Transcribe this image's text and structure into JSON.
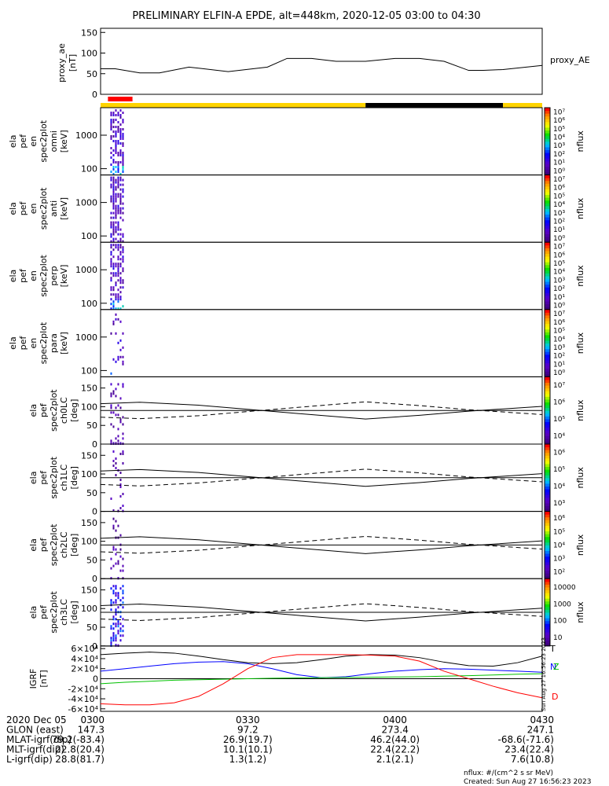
{
  "header": {
    "title": "PRELIMINARY ELFIN-A EPDE, alt=448km, 2020-12-05 03:00 to 04:30"
  },
  "colors": {
    "orbit_light": "#ffd400",
    "orbit_dark": "#000000",
    "science_zone": "#ff0000",
    "igrf_t": "#000000",
    "igrf_n": "#0000ff",
    "igrf_z": "#00c000",
    "igrf_d": "#ff0000"
  },
  "chart_data": [
    {
      "type": "line",
      "panel": "proxy_ae",
      "ylabel": [
        "proxy_ae",
        "[nT]"
      ],
      "yticks": [
        "0",
        "50",
        "100",
        "150"
      ],
      "ylim": [
        0,
        160
      ],
      "legend": "proxy_AE",
      "x_minutes": [
        0,
        3,
        8,
        12,
        18,
        26,
        34,
        38,
        43,
        48,
        54,
        60,
        65,
        70,
        75,
        78,
        82,
        90
      ],
      "values": [
        62,
        62,
        52,
        52,
        66,
        55,
        66,
        87,
        87,
        80,
        80,
        87,
        87,
        80,
        58,
        58,
        60,
        70
      ]
    },
    {
      "type": "heatmap",
      "panel": "spectrogram-omni",
      "ylabel": [
        "ela",
        "pef",
        "en",
        "spec2plot",
        "omni",
        "[keV]"
      ],
      "yticks": [
        "100",
        "1000"
      ],
      "zticks": [
        "10⁰",
        "10¹",
        "10²",
        "10³",
        "10⁴",
        "10⁵",
        "10⁶",
        "10⁷"
      ],
      "zlabel": "nflux",
      "active_interval_minutes": [
        2,
        4.5
      ]
    },
    {
      "type": "heatmap",
      "panel": "spectrogram-anti",
      "ylabel": [
        "ela",
        "pef",
        "en",
        "spec2plot",
        "anti",
        "[keV]"
      ],
      "yticks": [
        "100",
        "1000"
      ],
      "zticks": [
        "10⁰",
        "10¹",
        "10²",
        "10³",
        "10⁴",
        "10⁵",
        "10⁶",
        "10⁷"
      ],
      "zlabel": "nflux",
      "active_interval_minutes": [
        2,
        4.5
      ]
    },
    {
      "type": "heatmap",
      "panel": "spectrogram-perp",
      "ylabel": [
        "ela",
        "pef",
        "en",
        "spec2plot",
        "perp",
        "[keV]"
      ],
      "yticks": [
        "100",
        "1000"
      ],
      "zticks": [
        "10⁰",
        "10¹",
        "10²",
        "10³",
        "10⁴",
        "10⁵",
        "10⁶",
        "10⁷"
      ],
      "zlabel": "nflux",
      "active_interval_minutes": [
        2,
        4.5
      ]
    },
    {
      "type": "heatmap",
      "panel": "spectrogram-para",
      "ylabel": [
        "ela",
        "pef",
        "en",
        "spec2plot",
        "para",
        "[keV]"
      ],
      "yticks": [
        "100",
        "1000"
      ],
      "zticks": [
        "10⁰",
        "10¹",
        "10²",
        "10³",
        "10⁴",
        "10⁵",
        "10⁶",
        "10⁷"
      ],
      "zlabel": "nflux",
      "active_interval_minutes": [
        2,
        4.5
      ]
    },
    {
      "type": "heatmap",
      "panel": "pitch-angle-ch0",
      "ylabel": [
        "ela",
        "pef",
        "spec2plot",
        "ch0LC",
        "[deg]"
      ],
      "yticks": [
        "0",
        "50",
        "100",
        "150"
      ],
      "ylim": [
        0,
        180
      ],
      "zticks": [
        "10⁴",
        "10⁵",
        "10⁶",
        "10⁷"
      ],
      "zlabel": "nflux",
      "active_interval_minutes": [
        2,
        4.5
      ]
    },
    {
      "type": "heatmap",
      "panel": "pitch-angle-ch1",
      "ylabel": [
        "ela",
        "pef",
        "spec2plot",
        "ch1LC",
        "[deg]"
      ],
      "yticks": [
        "0",
        "50",
        "100",
        "150"
      ],
      "ylim": [
        0,
        180
      ],
      "zticks": [
        "10³",
        "10⁴",
        "10⁵",
        "10⁶"
      ],
      "zlabel": "nflux",
      "active_interval_minutes": [
        2,
        4.5
      ]
    },
    {
      "type": "heatmap",
      "panel": "pitch-angle-ch2",
      "ylabel": [
        "ela",
        "pef",
        "spec2plot",
        "ch2LC",
        "[deg]"
      ],
      "yticks": [
        "0",
        "50",
        "100",
        "150"
      ],
      "ylim": [
        0,
        180
      ],
      "zticks": [
        "10²",
        "10³",
        "10⁴",
        "10⁵",
        "10⁶"
      ],
      "zlabel": "nflux",
      "active_interval_minutes": [
        2,
        4.5
      ]
    },
    {
      "type": "heatmap",
      "panel": "pitch-angle-ch3",
      "ylabel": [
        "ela",
        "pef",
        "spec2plot",
        "ch3LC",
        "[deg]"
      ],
      "yticks": [
        "0",
        "50",
        "100",
        "150"
      ],
      "ylim": [
        0,
        180
      ],
      "zticks": [
        "10",
        "100",
        "1000",
        "10000"
      ],
      "zlabel": "nflux",
      "active_interval_minutes": [
        2,
        4.5
      ]
    },
    {
      "type": "line",
      "panel": "igrf",
      "ylabel": [
        "IGRF",
        "[nT]"
      ],
      "yticks": [
        "-6×10⁴",
        "-4×10⁴",
        "-2×10⁴",
        "0",
        "2×10⁴",
        "4×10⁴",
        "6×10⁴"
      ],
      "ylim": [
        -65000,
        65000
      ],
      "x_minutes": [
        0,
        5,
        10,
        15,
        20,
        25,
        30,
        35,
        40,
        45,
        50,
        55,
        60,
        65,
        70,
        75,
        80,
        85,
        90
      ],
      "series": [
        {
          "name": "T",
          "values": [
            48000,
            51000,
            53000,
            51000,
            45000,
            38000,
            32000,
            30000,
            32000,
            38000,
            45000,
            48000,
            47000,
            42000,
            33000,
            26000,
            25000,
            32000,
            45000
          ]
        },
        {
          "name": "N",
          "values": [
            15000,
            20000,
            25000,
            30000,
            33000,
            34000,
            30000,
            20000,
            8000,
            2000,
            4000,
            10000,
            15000,
            18000,
            20000,
            19000,
            17000,
            15000,
            13000
          ]
        },
        {
          "name": "Z",
          "values": [
            -10000,
            -7000,
            -5000,
            -3000,
            -2000,
            -1000,
            0,
            1000,
            1500,
            2000,
            2500,
            3000,
            3500,
            4000,
            5000,
            6000,
            7500,
            9000,
            10000
          ]
        },
        {
          "name": "D",
          "values": [
            -50000,
            -52000,
            -52000,
            -48000,
            -35000,
            -10000,
            20000,
            42000,
            48000,
            48000,
            48000,
            47000,
            45000,
            35000,
            15000,
            0,
            -15000,
            -28000,
            -38000
          ]
        }
      ]
    }
  ],
  "orbit_bar": {
    "segments_minutes": [
      {
        "from": 0,
        "to": 54,
        "state": "light"
      },
      {
        "from": 54,
        "to": 82,
        "state": "dark"
      },
      {
        "from": 82,
        "to": 90,
        "state": "light"
      }
    ],
    "science_zone_minutes": [
      1.5,
      6.5
    ]
  },
  "mlat_trace": {
    "x_minutes": [
      0,
      8,
      20,
      30,
      40,
      54,
      65,
      75,
      90
    ],
    "pitch_deg": [
      108,
      112,
      104,
      93,
      82,
      67,
      77,
      88,
      101
    ]
  },
  "footer": {
    "rows": [
      [
        "2020 Dec 05",
        "0300",
        "0330",
        "0400",
        "0430"
      ],
      [
        "GLON (east)",
        "147.3",
        "97.2",
        "273.4",
        "247.1"
      ],
      [
        "MLAT-igrf(dip)",
        "79.2(-83.4)",
        "26.9(19.7)",
        "46.2(44.0)",
        "-68.6(-71.6)"
      ],
      [
        "MLT-igrf(dip)",
        "22.8(20.4)",
        "10.1(10.1)",
        "22.4(22.2)",
        "23.4(22.4)"
      ],
      [
        "L-igrf(dip)",
        "28.8(81.7)",
        "1.3(1.2)",
        "2.1(2.1)",
        "7.6(10.8)"
      ]
    ],
    "units_note": "nflux: #/(cm^2 s sr MeV)",
    "created": "Created: Sun Aug 27 16:56:23 2023",
    "side_stamp": "Sun Aug 27 16:56:23 2023"
  }
}
